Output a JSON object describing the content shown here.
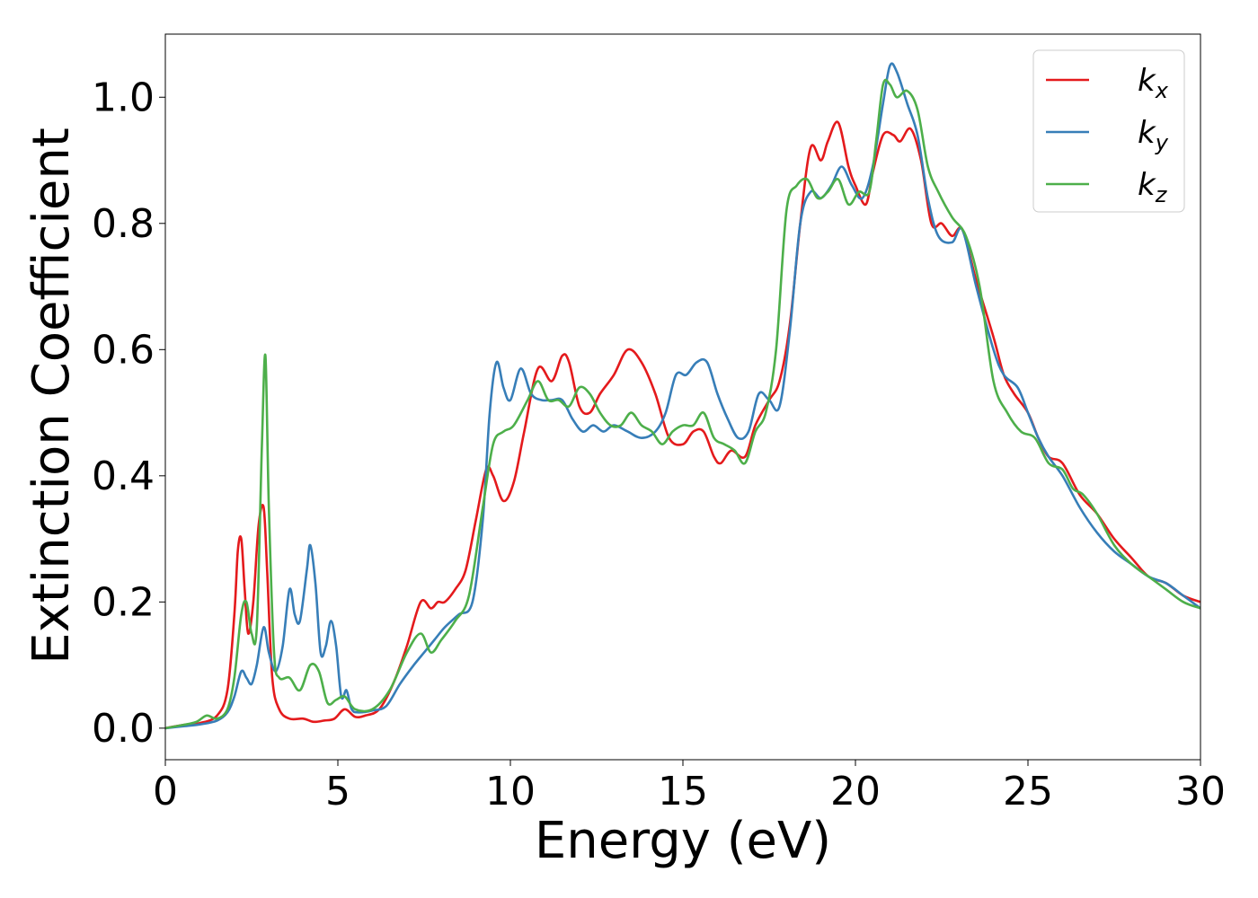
{
  "chart_data": {
    "type": "line",
    "xlabel": "Energy (eV)",
    "ylabel": "Extinction Coefficient",
    "xlim": [
      0,
      30
    ],
    "ylim": [
      -0.05,
      1.1
    ],
    "xticks": [
      "0",
      "5",
      "10",
      "15",
      "20",
      "25",
      "30"
    ],
    "yticks": [
      "0.0",
      "0.2",
      "0.4",
      "0.6",
      "0.8",
      "1.0"
    ],
    "grid": false,
    "legend_position": "top-right",
    "series": [
      {
        "name": "k_x",
        "label_main": "k",
        "label_sub": "x",
        "color": "#e41a1c",
        "x": [
          0,
          0.5,
          1.0,
          1.5,
          1.8,
          2.0,
          2.1,
          2.2,
          2.3,
          2.4,
          2.55,
          2.7,
          2.85,
          2.95,
          3.1,
          3.3,
          3.6,
          4.0,
          4.3,
          4.6,
          4.9,
          5.2,
          5.5,
          5.8,
          6.2,
          6.6,
          7.0,
          7.4,
          7.7,
          7.9,
          8.1,
          8.4,
          8.7,
          9.0,
          9.3,
          9.5,
          9.8,
          10.1,
          10.4,
          10.8,
          11.2,
          11.5,
          11.7,
          12.0,
          12.3,
          12.6,
          13.0,
          13.4,
          13.8,
          14.2,
          14.6,
          15.0,
          15.3,
          15.6,
          15.9,
          16.1,
          16.4,
          16.8,
          17.1,
          17.5,
          17.8,
          18.1,
          18.4,
          18.7,
          19.0,
          19.2,
          19.5,
          19.8,
          20.0,
          20.3,
          20.5,
          20.8,
          21.1,
          21.3,
          21.6,
          21.9,
          22.2,
          22.5,
          22.8,
          23.1,
          23.5,
          24.0,
          24.3,
          24.6,
          25.0,
          25.3,
          25.6,
          26.0,
          26.5,
          27.0,
          27.5,
          28.0,
          28.5,
          29.0,
          29.5,
          30.0
        ],
        "y": [
          0.0,
          0.005,
          0.008,
          0.02,
          0.06,
          0.18,
          0.28,
          0.3,
          0.22,
          0.15,
          0.2,
          0.32,
          0.35,
          0.25,
          0.08,
          0.03,
          0.015,
          0.015,
          0.01,
          0.012,
          0.015,
          0.03,
          0.018,
          0.02,
          0.03,
          0.07,
          0.13,
          0.2,
          0.19,
          0.2,
          0.2,
          0.22,
          0.25,
          0.33,
          0.41,
          0.4,
          0.36,
          0.39,
          0.47,
          0.57,
          0.55,
          0.59,
          0.58,
          0.51,
          0.5,
          0.53,
          0.56,
          0.6,
          0.58,
          0.53,
          0.46,
          0.45,
          0.47,
          0.47,
          0.43,
          0.42,
          0.44,
          0.43,
          0.48,
          0.52,
          0.55,
          0.64,
          0.8,
          0.92,
          0.9,
          0.93,
          0.96,
          0.89,
          0.86,
          0.83,
          0.88,
          0.94,
          0.94,
          0.93,
          0.95,
          0.9,
          0.8,
          0.8,
          0.78,
          0.79,
          0.71,
          0.62,
          0.56,
          0.53,
          0.5,
          0.46,
          0.43,
          0.42,
          0.37,
          0.34,
          0.3,
          0.27,
          0.24,
          0.23,
          0.21,
          0.2
        ]
      },
      {
        "name": "k_y",
        "label_main": "k",
        "label_sub": "y",
        "color": "#377eb8",
        "x": [
          0,
          0.5,
          1.0,
          1.5,
          1.8,
          2.0,
          2.2,
          2.35,
          2.5,
          2.65,
          2.85,
          3.0,
          3.2,
          3.4,
          3.6,
          3.75,
          3.9,
          4.1,
          4.2,
          4.35,
          4.5,
          4.65,
          4.8,
          4.95,
          5.1,
          5.25,
          5.4,
          5.6,
          6.0,
          6.4,
          6.8,
          7.2,
          7.5,
          7.8,
          8.1,
          8.5,
          8.9,
          9.2,
          9.4,
          9.6,
          9.8,
          10.0,
          10.3,
          10.6,
          10.9,
          11.2,
          11.5,
          11.8,
          12.1,
          12.4,
          12.7,
          13.0,
          13.4,
          13.8,
          14.2,
          14.5,
          14.8,
          15.1,
          15.4,
          15.7,
          16.0,
          16.3,
          16.6,
          16.9,
          17.2,
          17.5,
          17.8,
          18.1,
          18.4,
          18.7,
          19.0,
          19.3,
          19.6,
          19.9,
          20.2,
          20.5,
          20.8,
          21.0,
          21.2,
          21.5,
          21.8,
          22.1,
          22.4,
          22.8,
          23.1,
          23.5,
          24.0,
          24.3,
          24.7,
          25.0,
          25.3,
          25.6,
          26.0,
          26.5,
          27.0,
          27.5,
          28.0,
          28.5,
          29.0,
          29.5,
          30.0
        ],
        "y": [
          0.0,
          0.003,
          0.006,
          0.012,
          0.025,
          0.05,
          0.09,
          0.08,
          0.07,
          0.1,
          0.16,
          0.12,
          0.09,
          0.13,
          0.22,
          0.18,
          0.17,
          0.25,
          0.29,
          0.23,
          0.12,
          0.13,
          0.17,
          0.13,
          0.05,
          0.06,
          0.03,
          0.025,
          0.028,
          0.035,
          0.07,
          0.1,
          0.12,
          0.14,
          0.16,
          0.18,
          0.2,
          0.33,
          0.5,
          0.58,
          0.54,
          0.52,
          0.57,
          0.53,
          0.52,
          0.52,
          0.52,
          0.49,
          0.47,
          0.48,
          0.47,
          0.48,
          0.47,
          0.46,
          0.47,
          0.5,
          0.56,
          0.56,
          0.58,
          0.58,
          0.53,
          0.49,
          0.46,
          0.47,
          0.53,
          0.52,
          0.51,
          0.63,
          0.8,
          0.85,
          0.84,
          0.86,
          0.89,
          0.86,
          0.84,
          0.89,
          0.99,
          1.05,
          1.04,
          0.99,
          0.94,
          0.84,
          0.78,
          0.77,
          0.79,
          0.7,
          0.6,
          0.56,
          0.54,
          0.5,
          0.46,
          0.43,
          0.4,
          0.35,
          0.31,
          0.28,
          0.26,
          0.24,
          0.23,
          0.21,
          0.19
        ]
      },
      {
        "name": "k_z",
        "label_main": "k",
        "label_sub": "z",
        "color": "#4daf4a",
        "x": [
          0,
          0.5,
          0.9,
          1.2,
          1.5,
          1.8,
          2.0,
          2.2,
          2.35,
          2.5,
          2.65,
          2.8,
          2.9,
          3.0,
          3.15,
          3.3,
          3.6,
          3.9,
          4.2,
          4.45,
          4.7,
          4.95,
          5.2,
          5.5,
          6.0,
          6.5,
          7.0,
          7.4,
          7.7,
          8.0,
          8.4,
          8.8,
          9.2,
          9.5,
          9.8,
          10.1,
          10.5,
          10.8,
          11.1,
          11.4,
          11.7,
          12.0,
          12.3,
          12.6,
          12.9,
          13.2,
          13.5,
          13.8,
          14.1,
          14.4,
          14.7,
          15.0,
          15.3,
          15.6,
          15.9,
          16.2,
          16.5,
          16.8,
          17.1,
          17.4,
          17.7,
          18.0,
          18.3,
          18.6,
          18.9,
          19.2,
          19.5,
          19.8,
          20.1,
          20.4,
          20.6,
          20.8,
          21.0,
          21.2,
          21.5,
          21.8,
          22.1,
          22.4,
          22.8,
          23.2,
          23.6,
          24.0,
          24.4,
          24.8,
          25.2,
          25.6,
          26.0,
          26.3,
          26.6,
          27.0,
          27.5,
          28.0,
          28.5,
          29.0,
          29.5,
          30.0
        ],
        "y": [
          0.0,
          0.005,
          0.01,
          0.02,
          0.015,
          0.03,
          0.08,
          0.18,
          0.2,
          0.15,
          0.16,
          0.45,
          0.59,
          0.35,
          0.12,
          0.08,
          0.08,
          0.06,
          0.1,
          0.09,
          0.04,
          0.045,
          0.05,
          0.03,
          0.03,
          0.06,
          0.12,
          0.15,
          0.12,
          0.14,
          0.17,
          0.21,
          0.35,
          0.45,
          0.47,
          0.48,
          0.52,
          0.55,
          0.52,
          0.52,
          0.51,
          0.54,
          0.53,
          0.5,
          0.48,
          0.48,
          0.5,
          0.48,
          0.47,
          0.45,
          0.47,
          0.48,
          0.48,
          0.5,
          0.46,
          0.45,
          0.44,
          0.42,
          0.47,
          0.5,
          0.6,
          0.82,
          0.86,
          0.87,
          0.84,
          0.85,
          0.87,
          0.83,
          0.85,
          0.85,
          0.93,
          1.02,
          1.02,
          1.0,
          1.01,
          0.98,
          0.89,
          0.85,
          0.81,
          0.78,
          0.7,
          0.55,
          0.5,
          0.47,
          0.46,
          0.42,
          0.41,
          0.38,
          0.37,
          0.34,
          0.29,
          0.26,
          0.24,
          0.22,
          0.2,
          0.19
        ]
      }
    ]
  }
}
